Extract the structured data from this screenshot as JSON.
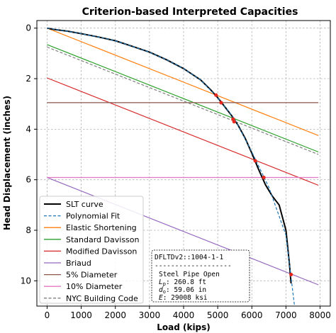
{
  "chart_data": {
    "type": "line",
    "title": "Criterion-based Interpreted Capacities",
    "xlabel": "Load (kips)",
    "ylabel": "Head Displacement (inches)",
    "xlim": [
      -300,
      8300
    ],
    "ylim": [
      11.0,
      -0.3
    ],
    "y_inverted": true,
    "grid": true,
    "legend_position": "lower-left",
    "xticks": [
      0,
      1000,
      2000,
      3000,
      4000,
      5000,
      6000,
      7000,
      8000
    ],
    "yticks": [
      0,
      2,
      4,
      6,
      8,
      10
    ],
    "series": [
      {
        "name": "SLT curve",
        "color": "#000000",
        "style": "solid",
        "width": 2,
        "x": [
          0,
          200,
          600,
          1000,
          1500,
          2000,
          2500,
          3000,
          3500,
          4000,
          4500,
          4800,
          5000,
          5200,
          5400,
          5600,
          5800,
          6000,
          6200,
          6400,
          6600,
          6800,
          7000,
          7100,
          7150
        ],
        "y": [
          0,
          0.05,
          0.12,
          0.22,
          0.35,
          0.5,
          0.72,
          0.95,
          1.25,
          1.6,
          2.05,
          2.45,
          2.75,
          3.1,
          3.45,
          3.85,
          4.35,
          4.95,
          5.6,
          6.2,
          6.65,
          7.0,
          8.0,
          9.3,
          10.1
        ]
      },
      {
        "name": "Polynomial Fit",
        "color": "#1f77b4",
        "style": "dashed",
        "width": 1.2,
        "x": [
          0,
          500,
          1000,
          1500,
          2000,
          2500,
          3000,
          3500,
          4000,
          4500,
          5000,
          5500,
          6000,
          6500,
          7000,
          7250
        ],
        "y": [
          0,
          0.1,
          0.22,
          0.35,
          0.5,
          0.72,
          0.95,
          1.25,
          1.6,
          2.05,
          2.75,
          3.6,
          4.9,
          6.3,
          8.2,
          11.0
        ]
      },
      {
        "name": "Elastic Shortening",
        "color": "#ff7f0e",
        "style": "solid",
        "width": 1.2,
        "x": [
          0,
          7950
        ],
        "y": [
          0,
          4.25
        ]
      },
      {
        "name": "Standard Davisson",
        "color": "#2ca02c",
        "style": "solid",
        "width": 1.2,
        "x": [
          0,
          7950
        ],
        "y": [
          0.65,
          4.9
        ]
      },
      {
        "name": "Modified Davisson",
        "color": "#d62728",
        "style": "solid",
        "width": 1.2,
        "x": [
          0,
          7950
        ],
        "y": [
          1.97,
          6.22
        ]
      },
      {
        "name": "Briaud",
        "color": "#9467bd",
        "style": "solid",
        "width": 1.2,
        "x": [
          0,
          7950
        ],
        "y": [
          5.91,
          10.16
        ]
      },
      {
        "name": "5% Diameter",
        "color": "#8c564b",
        "style": "solid",
        "width": 1.2,
        "x": [
          0,
          7950
        ],
        "y": [
          2.95,
          2.95
        ]
      },
      {
        "name": "10% Diameter",
        "color": "#e377c2",
        "style": "solid",
        "width": 1.2,
        "x": [
          0,
          7950
        ],
        "y": [
          5.91,
          5.91
        ]
      },
      {
        "name": "NYC Building Code",
        "color": "#7f7f7f",
        "style": "dashed",
        "width": 1.2,
        "x": [
          0,
          7950
        ],
        "y": [
          0.75,
          5.0
        ]
      }
    ],
    "intersections": {
      "color": "#e8281e",
      "x": [
        4950,
        5100,
        5450,
        5480,
        6100,
        6350,
        7150
      ],
      "y": [
        2.65,
        2.95,
        3.6,
        3.7,
        5.25,
        5.91,
        9.75
      ]
    },
    "info_box": {
      "lines": [
        "DFLTDv2::1004-1-1",
        "-------------------",
        "Steel Pipe Open"
      ],
      "params": [
        {
          "sym": "L",
          "sub": "p",
          "value": ": 260.8 ft"
        },
        {
          "sym": "d",
          "sub": "o",
          "value": ": 59.06 in"
        },
        {
          "sym": "E",
          "sub": "",
          "value": ": 29008 ksi"
        }
      ]
    }
  }
}
